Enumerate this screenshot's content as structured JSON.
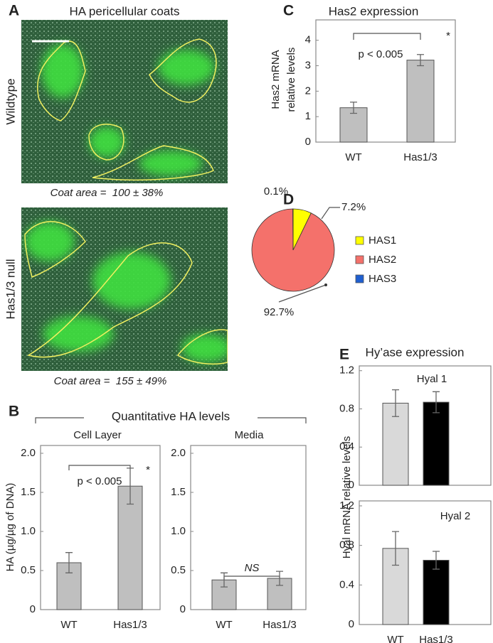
{
  "chart_data": [
    {
      "type": "image",
      "panel_label": "A",
      "title": "HA pericellular coats",
      "images": [
        {
          "label": "Wildtype",
          "caption": "Coat area =  100 ± 38%"
        },
        {
          "label": "Has1/3 null",
          "caption": "Coat area =  155 ± 49%"
        }
      ]
    },
    {
      "type": "bar",
      "panel_label": "B",
      "title": "Quantitative HA levels",
      "ylabel": "HA  (µg/µg of DNA)",
      "categories": [
        "WT",
        "Has1/3"
      ],
      "color": "#bfbfbf",
      "ylim": [
        0,
        2.1
      ],
      "yticks": [
        0,
        0.5,
        {
          "value": 1,
          "label": "1.0"
        },
        1.5,
        {
          "value": 2,
          "label": "2.0"
        }
      ],
      "subplots": [
        {
          "title": "Cell Layer",
          "values": [
            0.6,
            1.58
          ],
          "errors": [
            0.13,
            0.23
          ],
          "annotations": [
            "p < 0.005",
            "*"
          ]
        },
        {
          "title": "Media",
          "values": [
            0.38,
            0.4
          ],
          "errors": [
            0.09,
            0.09
          ],
          "annotations": [
            "NS"
          ]
        }
      ]
    },
    {
      "type": "bar",
      "panel_label": "C",
      "title": "Has2 expression",
      "ylabel": [
        "Has2 mRNA",
        "relative levels"
      ],
      "categories": [
        "WT",
        "Has1/3"
      ],
      "color": "#bfbfbf",
      "values": [
        1.35,
        3.22
      ],
      "errors": [
        0.22,
        0.22
      ],
      "ylim": [
        0,
        4.8
      ],
      "yticks": [
        0,
        1,
        2,
        3,
        4
      ],
      "annotations": [
        "p < 0.005",
        "*"
      ]
    },
    {
      "type": "pie",
      "panel_label": "D",
      "categories": [
        "HAS1",
        "HAS2",
        "HAS3"
      ],
      "values": [
        7.2,
        92.7,
        0.1
      ],
      "value_labels": [
        "7.2%",
        "92.7%",
        "0.1%"
      ],
      "colors": [
        "#ffff00",
        "#f4716b",
        "#1f5fd0"
      ]
    },
    {
      "type": "bar",
      "panel_label": "E",
      "title": "Hy’ase expression",
      "ylabel": "Hyal mRNA relative levels",
      "categories": [
        "WT",
        "Has1/3"
      ],
      "colors": [
        "#d9d9d9",
        "#000000"
      ],
      "ylim": [
        0,
        1.25
      ],
      "yticks": [
        0,
        0.4,
        0.8,
        1.2
      ],
      "subplots": [
        {
          "title": "Hyal 1",
          "values": [
            0.86,
            0.87
          ],
          "errors": [
            0.14,
            0.11
          ]
        },
        {
          "title": "Hyal 2",
          "values": [
            0.77,
            0.65
          ],
          "errors": [
            0.17,
            0.09
          ]
        }
      ]
    }
  ]
}
